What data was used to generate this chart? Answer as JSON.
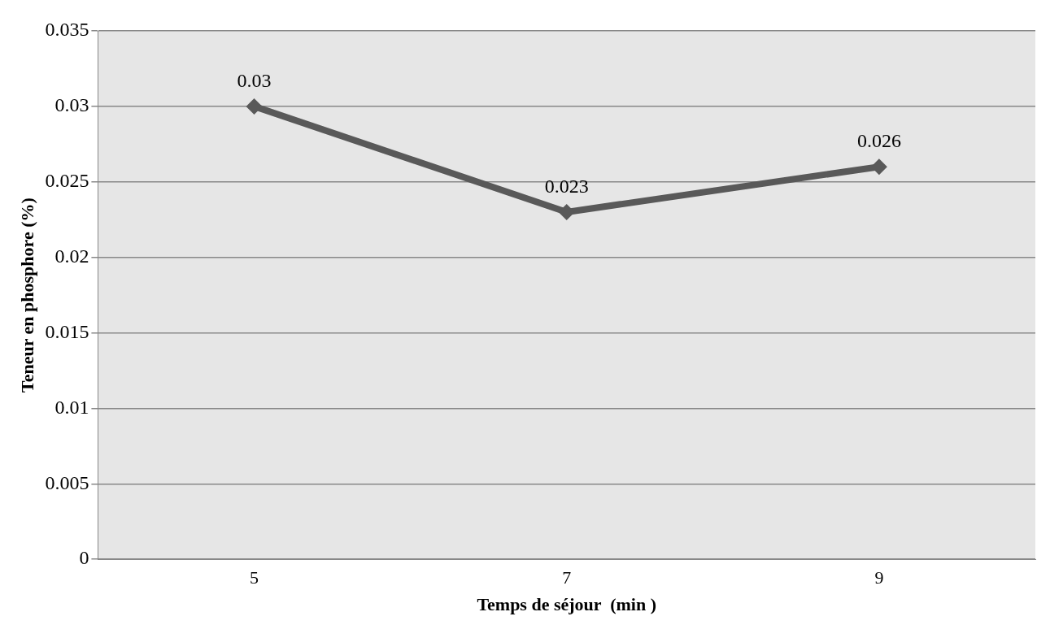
{
  "chart_data": {
    "type": "line",
    "xlabel": "Temps de séjour  (min )",
    "ylabel": "Teneur en phosphore (%)",
    "categories": [
      "5",
      "7",
      "9"
    ],
    "series": [
      {
        "color": "#595959",
        "values": [
          0.03,
          0.023,
          0.026
        ]
      }
    ],
    "ylim": [
      0,
      0.035
    ],
    "yticks": [
      0,
      0.005,
      0.01,
      0.015,
      0.02,
      0.025,
      0.03,
      0.035
    ],
    "grid": "y",
    "marker": "diamond",
    "line_style": "solid",
    "data_labels": true,
    "legend": false
  }
}
